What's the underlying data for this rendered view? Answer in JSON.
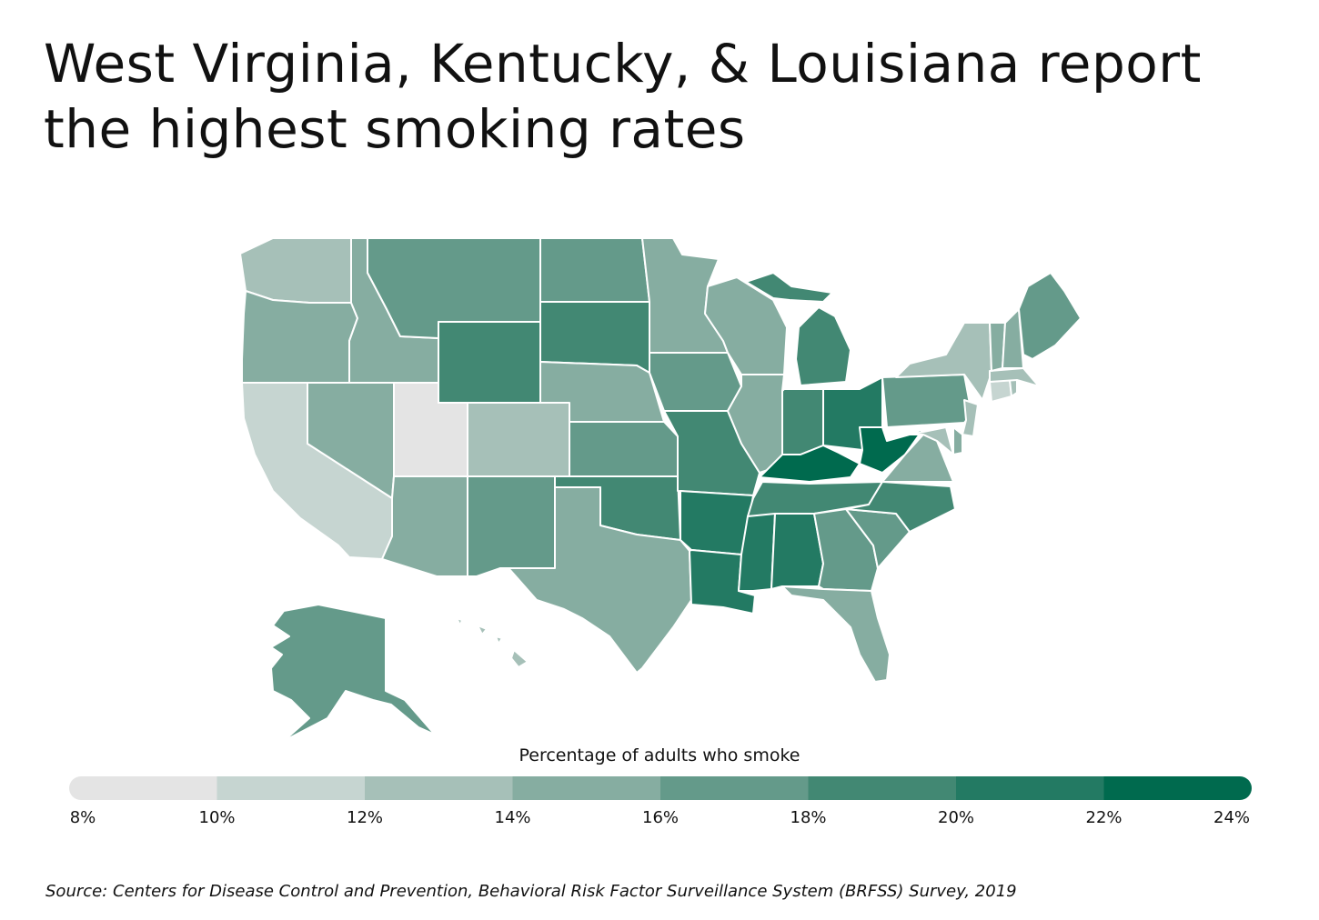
{
  "title": "West Virginia, Kentucky, & Louisiana report the highest smoking rates",
  "legend": {
    "title": "Percentage of adults who smoke",
    "ticks": [
      "8%",
      "10%",
      "12%",
      "14%",
      "16%",
      "18%",
      "20%",
      "22%",
      "24%"
    ],
    "bins": [
      {
        "min": 8,
        "max": 10,
        "color": "#e4e4e4"
      },
      {
        "min": 10,
        "max": 12,
        "color": "#c6d5d1"
      },
      {
        "min": 12,
        "max": 14,
        "color": "#a6c0b8"
      },
      {
        "min": 14,
        "max": 16,
        "color": "#86ada1"
      },
      {
        "min": 16,
        "max": 18,
        "color": "#649a8a"
      },
      {
        "min": 18,
        "max": 20,
        "color": "#428873"
      },
      {
        "min": 20,
        "max": 22,
        "color": "#237a63"
      },
      {
        "min": 22,
        "max": 24,
        "color": "#006a4e"
      }
    ]
  },
  "states": {
    "WA": {
      "bin": 2
    },
    "OR": {
      "bin": 3
    },
    "CA": {
      "bin": 1
    },
    "ID": {
      "bin": 3
    },
    "NV": {
      "bin": 3
    },
    "UT": {
      "bin": 0
    },
    "AZ": {
      "bin": 3
    },
    "MT": {
      "bin": 4
    },
    "WY": {
      "bin": 5
    },
    "CO": {
      "bin": 2
    },
    "NM": {
      "bin": 4
    },
    "ND": {
      "bin": 4
    },
    "SD": {
      "bin": 5
    },
    "NE": {
      "bin": 3
    },
    "KS": {
      "bin": 4
    },
    "OK": {
      "bin": 5
    },
    "TX": {
      "bin": 3
    },
    "MN": {
      "bin": 3
    },
    "IA": {
      "bin": 4
    },
    "MO": {
      "bin": 5
    },
    "AR": {
      "bin": 6
    },
    "LA": {
      "bin": 6
    },
    "WI": {
      "bin": 3
    },
    "IL": {
      "bin": 3
    },
    "MI": {
      "bin": 5
    },
    "IN": {
      "bin": 5
    },
    "OH": {
      "bin": 6
    },
    "KY": {
      "bin": 7
    },
    "TN": {
      "bin": 5
    },
    "MS": {
      "bin": 6
    },
    "AL": {
      "bin": 6
    },
    "WV": {
      "bin": 7
    },
    "GA": {
      "bin": 4
    },
    "FL": {
      "bin": 3
    },
    "SC": {
      "bin": 4
    },
    "NC": {
      "bin": 5
    },
    "VA": {
      "bin": 3
    },
    "PA": {
      "bin": 4
    },
    "NY": {
      "bin": 2
    },
    "NJ": {
      "bin": 2
    },
    "MD": {
      "bin": 2
    },
    "DE": {
      "bin": 3
    },
    "CT": {
      "bin": 1
    },
    "RI": {
      "bin": 2
    },
    "MA": {
      "bin": 2
    },
    "VT": {
      "bin": 3
    },
    "NH": {
      "bin": 3
    },
    "ME": {
      "bin": 4
    },
    "AK": {
      "bin": 4
    },
    "HI": {
      "bin": 2
    }
  },
  "source": "Source:  Centers for Disease Control and Prevention, Behavioral Risk Factor Surveillance System (BRFSS) Survey, 2019"
}
